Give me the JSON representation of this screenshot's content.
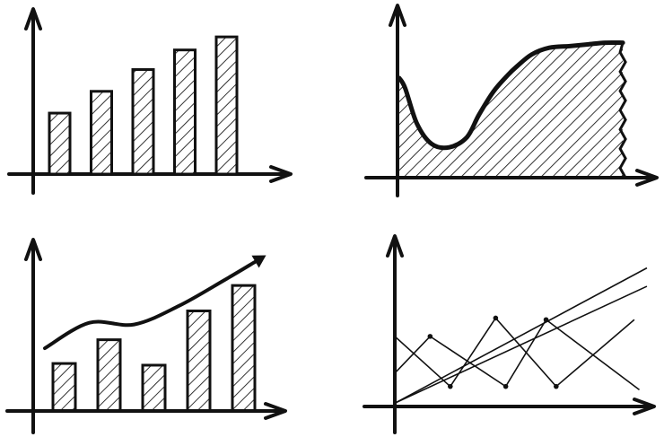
{
  "chart_data": [
    {
      "type": "bar",
      "title": "",
      "xlabel": "",
      "ylabel": "",
      "categories": [
        "",
        "",
        "",
        "",
        ""
      ],
      "values": [
        28,
        38,
        48,
        57,
        63
      ],
      "ylim": [
        0,
        75
      ],
      "grid": false,
      "style": "hand-drawn hatched"
    },
    {
      "type": "area",
      "title": "",
      "xlabel": "",
      "ylabel": "",
      "x": [
        0,
        2,
        6,
        11,
        17,
        23,
        27,
        32,
        37,
        40,
        45,
        51,
        58,
        64,
        70,
        76
      ],
      "values": [
        59,
        53,
        32,
        20,
        18,
        24,
        37,
        51,
        61,
        66,
        73,
        77,
        78,
        79,
        80,
        80
      ],
      "xlim": [
        0,
        90
      ],
      "ylim": [
        0,
        100
      ],
      "grid": false,
      "style": "hand-drawn hatched fill"
    },
    {
      "type": "bar",
      "title": "",
      "xlabel": "",
      "ylabel": "",
      "categories": [
        "",
        "",
        "",
        "",
        ""
      ],
      "values": [
        28,
        42,
        27,
        59,
        74
      ],
      "trend": {
        "x": [
          0,
          1,
          2,
          3,
          4,
          4.7
        ],
        "values": [
          37,
          52,
          51,
          62,
          77,
          88
        ]
      },
      "ylim": [
        0,
        100
      ],
      "grid": false,
      "style": "hand-drawn hatched with trend arrow"
    },
    {
      "type": "line",
      "title": "",
      "xlabel": "",
      "ylabel": "",
      "series": [
        {
          "x": [
            0,
            22,
            40,
            64,
            95
          ],
          "values": [
            42,
            12,
            53,
            12,
            52
          ],
          "markers": true
        },
        {
          "x": [
            0,
            14,
            44,
            60,
            97
          ],
          "values": [
            20,
            42,
            12,
            52,
            10
          ],
          "markers": true
        },
        {
          "x": [
            0,
            100
          ],
          "values": [
            2,
            83
          ]
        },
        {
          "x": [
            0,
            100
          ],
          "values": [
            2,
            72
          ]
        }
      ],
      "xlim": [
        0,
        105
      ],
      "ylim": [
        0,
        100
      ],
      "grid": false,
      "style": "hand-drawn thin lines"
    }
  ]
}
